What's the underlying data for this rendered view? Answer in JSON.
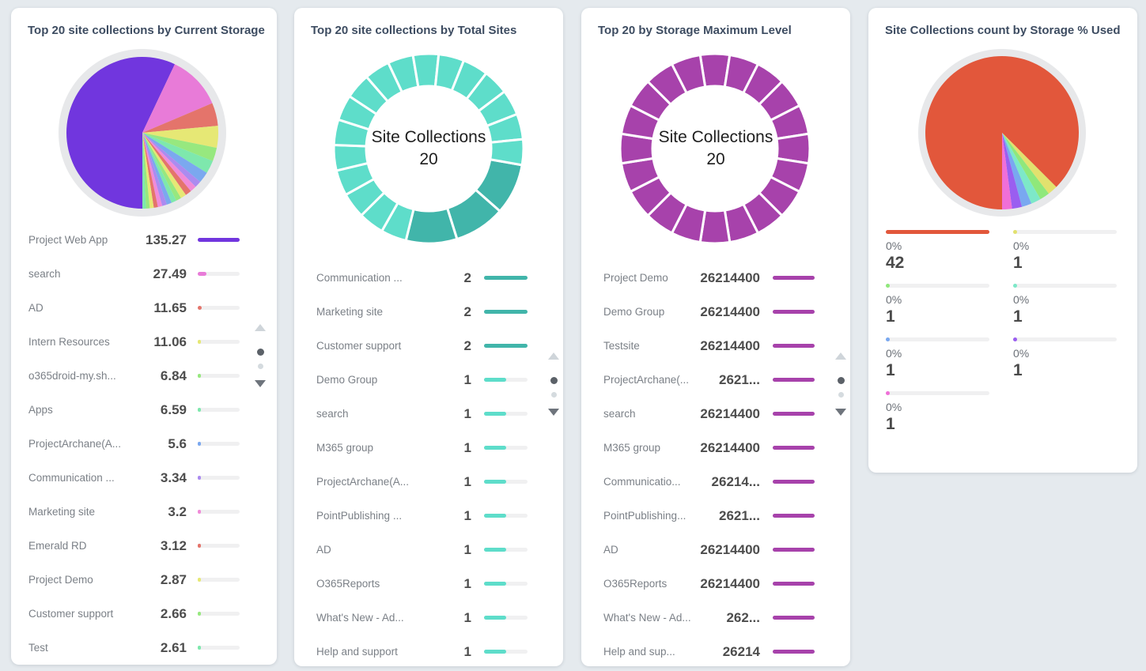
{
  "page": {
    "background": "#e5eaee"
  },
  "chart_data": [
    {
      "type": "pie",
      "title": "Top 20 site collections by Current Storage",
      "categories": [
        "Project Web App",
        "search",
        "AD",
        "Intern Resources",
        "o365droid-my.sh...",
        "Apps",
        "ProjectArchane(A...",
        "Communication ...",
        "Marketing site",
        "Emerald RD",
        "Project Demo",
        "Customer support",
        "Test"
      ],
      "values": [
        135.27,
        27.49,
        11.65,
        11.06,
        6.84,
        6.59,
        5.6,
        3.34,
        3.2,
        3.12,
        2.87,
        2.66,
        2.61
      ],
      "hidden_slices_estimated": [
        2.5,
        2.4,
        2.2,
        2.1,
        2.0,
        1.9,
        1.8
      ],
      "colors": [
        "#7136de",
        "#e87bd8",
        "#e4746b",
        "#e6e875",
        "#97e87f",
        "#7ee8ad",
        "#7ba8ef",
        "#ab8bf0",
        "#f08bd8",
        "#e4746b",
        "#e6e875",
        "#97e87f",
        "#7ee8ad",
        "#7ba8ef",
        "#ab8bf0",
        "#f08bd8",
        "#e4746b",
        "#e6e875",
        "#97e87f",
        "#7ee8ad"
      ],
      "start_angle": 180,
      "max_value": 135.27,
      "legend_position": "list-below"
    },
    {
      "type": "donut",
      "title": "Top 20 site collections by Total Sites",
      "center_label": "Site Collections",
      "center_value": "20",
      "categories": [
        "Communication ...",
        "Marketing site",
        "Customer support",
        "Demo Group",
        "search",
        "M365 group",
        "ProjectArchane(A...",
        "PointPublishing ...",
        "AD",
        "O365Reports",
        "What's New - Ad...",
        "Help and support"
      ],
      "values": [
        2,
        2,
        2,
        1,
        1,
        1,
        1,
        1,
        1,
        1,
        1,
        1
      ],
      "hidden_values": [
        1,
        1,
        1,
        1,
        1,
        1,
        1,
        1
      ],
      "segments_total": 20,
      "color_value2": "#41b5aa",
      "color_value1": "#5eddca",
      "start_angle": 100,
      "max_value": 2,
      "legend_position": "list-below"
    },
    {
      "type": "donut",
      "title": "Top 20 by Storage Maximum Level",
      "center_label": "Site Collections",
      "center_value": "20",
      "categories": [
        "Project Demo",
        "Demo Group",
        "Testsite",
        "ProjectArchane(...",
        "search",
        "M365 group",
        "Communicatio...",
        "PointPublishing...",
        "AD",
        "O365Reports",
        "What's New - Ad...",
        "Help and sup..."
      ],
      "values_display": [
        "26214400",
        "26214400",
        "26214400",
        "2621...",
        "26214400",
        "26214400",
        "26214...",
        "2621...",
        "26214400",
        "26214400",
        "262...",
        "26214"
      ],
      "value_numeric": 26214400,
      "segments_total": 20,
      "color": "#a742ab",
      "start_angle": -9,
      "legend_position": "list-below"
    },
    {
      "type": "pie",
      "title": "Site Collections count by Storage % Used",
      "categories": [
        "0%",
        "0%",
        "0%",
        "0%",
        "0%",
        "0%",
        "0%"
      ],
      "values": [
        42,
        1,
        1,
        1,
        1,
        1,
        1
      ],
      "colors": [
        "#e2573b",
        "#e2e16e",
        "#8fe87b",
        "#7de8c8",
        "#79a8f0",
        "#9a5ef0",
        "#f06fd8"
      ],
      "start_angle": 180,
      "max_value": 42,
      "legend_position": "grid-below"
    }
  ],
  "cards": [
    {
      "pager": {
        "pages": 2,
        "active_page": 1
      }
    },
    {
      "pager": {
        "pages": 2,
        "active_page": 1
      }
    },
    {
      "pager": {
        "pages": 2,
        "active_page": 1
      }
    },
    {
      "pager": null
    }
  ]
}
